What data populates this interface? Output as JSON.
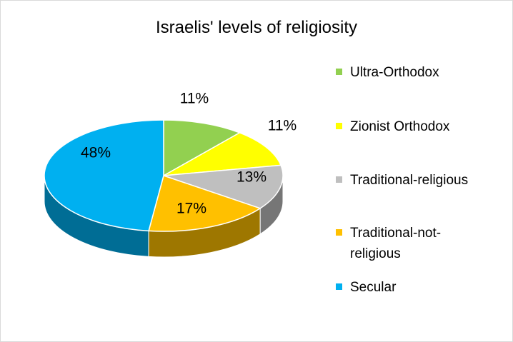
{
  "chart_data": {
    "type": "pie",
    "title": "Israelis' levels of religiosity",
    "categories": [
      "Ultra-Orthodox",
      "Zionist Orthodox",
      "Traditional-religious",
      "Traditional-not-religious",
      "Secular"
    ],
    "values": [
      11,
      11,
      13,
      17,
      48
    ],
    "labels": [
      "11%",
      "11%",
      "13%",
      "17%",
      "48%"
    ],
    "colors": [
      "#92d050",
      "#ffff00",
      "#bfbfbf",
      "#ffc000",
      "#00b0f0"
    ],
    "legend_position": "right",
    "style": "3d"
  }
}
